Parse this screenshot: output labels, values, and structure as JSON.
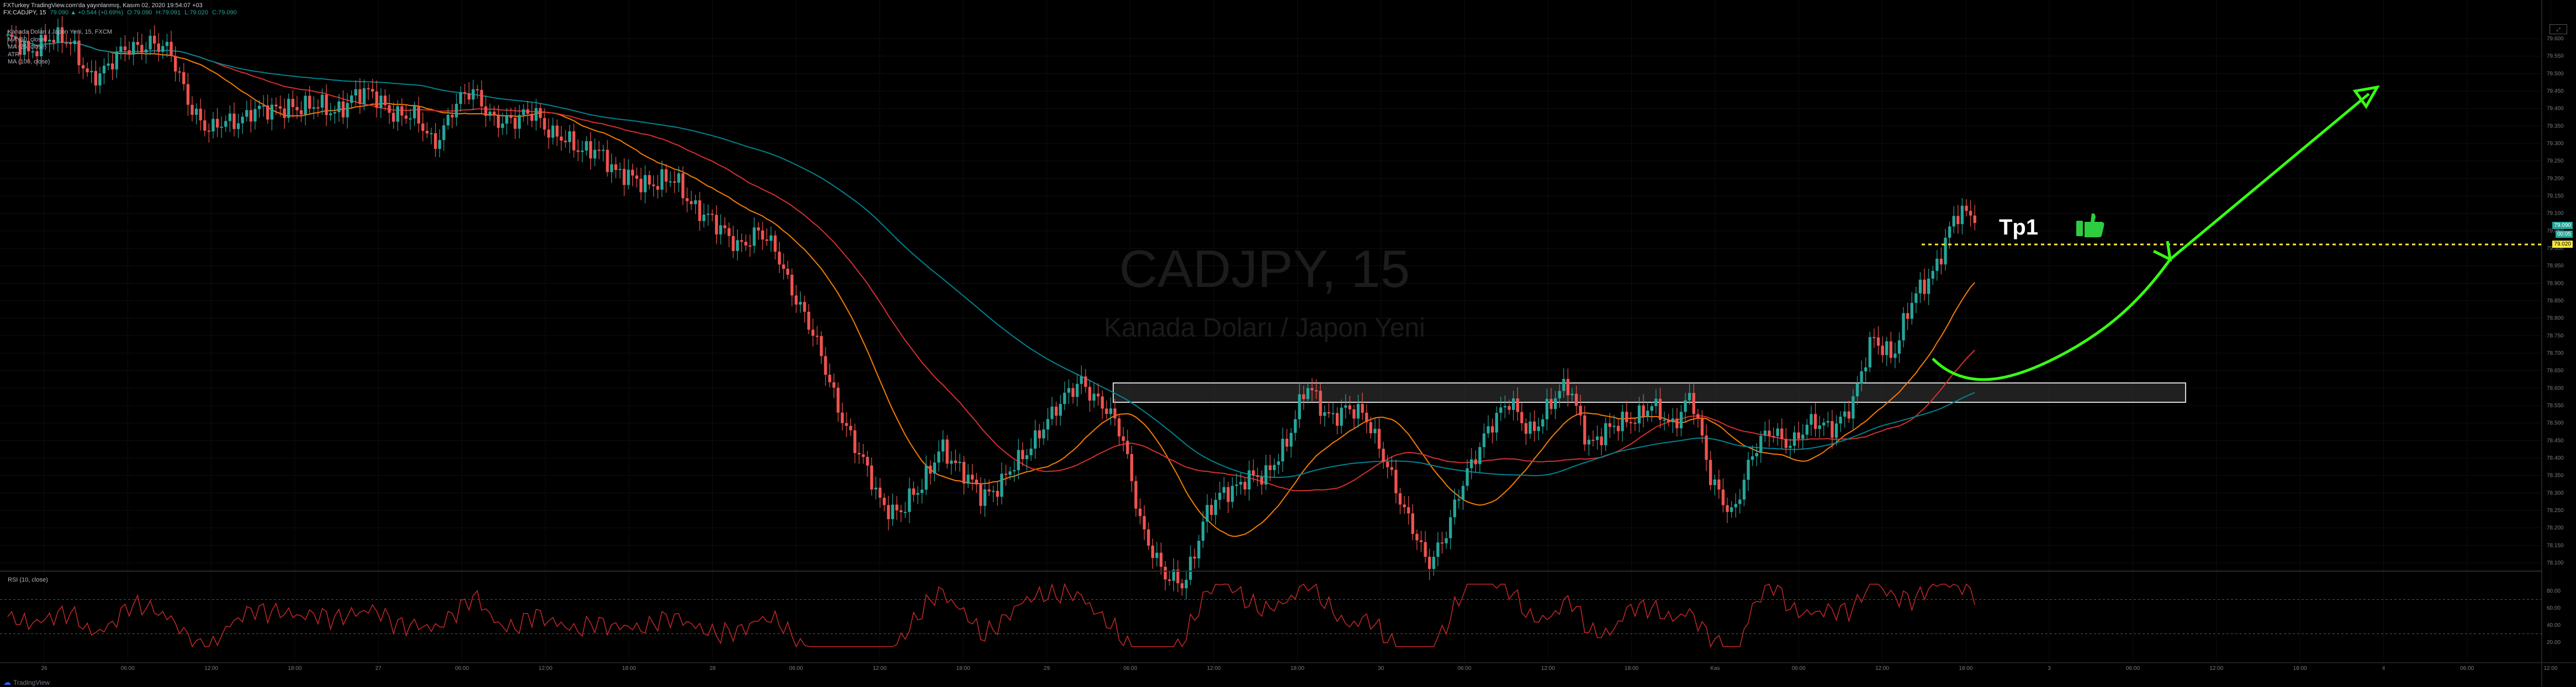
{
  "header": {
    "line1": "FXTurkey TradingView.com'da yayınlanmış, Kasım 02, 2020 19:54:07 +03",
    "symbol": "FX:CADJPY, 15",
    "ohlc": [
      "79.090 ▲ +0.544 (+0.69%)",
      "O:79.090",
      "H:79.091",
      "L:79.020",
      "C:79.090"
    ]
  },
  "legend": {
    "title": "Kanada Doları / Japon Yeni, 15, FXCM",
    "items": [
      "MA (50, close)",
      "MA (25, close)",
      "ATR",
      "MA (100, close)"
    ]
  },
  "watermark": {
    "symbol": "CADJPY, 15",
    "name": "Kanada Doları / Japon Yeni"
  },
  "annotation": {
    "tp_label": "Tp1"
  },
  "rsi_label": "RSI (10, close)",
  "footer": {
    "brand": "TradingView"
  },
  "colors": {
    "background": "#000000",
    "candle_up": "#26a69a",
    "candle_down": "#ef5350",
    "ma50": "#d32f2f",
    "ma25": "#f57c00",
    "ma100": "#00838f",
    "rsi": "#c62828",
    "target": "#ffeb3b",
    "arrow": "#39ff14"
  },
  "price_axis": {
    "ticks": [
      "79.600",
      "79.550",
      "79.500",
      "79.450",
      "79.400",
      "79.350",
      "79.300",
      "79.250",
      "79.200",
      "79.150",
      "79.100",
      "79.050",
      "79.000",
      "78.950",
      "78.900",
      "78.850",
      "78.800",
      "78.750",
      "78.700",
      "78.650",
      "78.600",
      "78.550",
      "78.500",
      "78.450",
      "78.400",
      "78.350",
      "78.300",
      "78.250",
      "78.200",
      "78.150",
      "78.100"
    ],
    "badges": [
      "79.090",
      "00:05",
      "79.020"
    ]
  },
  "rsi_axis": {
    "ticks": [
      "80.00",
      "60.00",
      "40.00",
      "20.00"
    ]
  },
  "time_axis": {
    "labels": [
      "26",
      "06:00",
      "12:00",
      "18:00",
      "27",
      "06:00",
      "12:00",
      "18:00",
      "28",
      "06:00",
      "12:00",
      "18:00",
      "29",
      "06:00",
      "12:00",
      "18:00",
      "30",
      "06:00",
      "12:00",
      "18:00",
      "Kas",
      "06:00",
      "12:00",
      "18:00",
      "3",
      "06:00",
      "12:00",
      "18:00",
      "4",
      "06:00",
      "12:00"
    ]
  },
  "chart_data": {
    "type": "candlestick",
    "title": "CADJPY, 15",
    "ylim": [
      78.1,
      79.6
    ],
    "series": [
      {
        "name": "CADJPY",
        "type": "close_path",
        "values": [
          79.6,
          79.55,
          79.62,
          79.58,
          79.5,
          79.52,
          79.57,
          79.6,
          79.55,
          79.42,
          79.33,
          79.36,
          79.4,
          79.38,
          79.42,
          79.4,
          79.39,
          79.44,
          79.43,
          79.4,
          79.37,
          79.3,
          79.41,
          79.44,
          79.38,
          79.35,
          79.4,
          79.32,
          79.28,
          79.3,
          79.2,
          79.21,
          79.18,
          79.19,
          79.12,
          79.05,
          79.02,
          79.04,
          78.98,
          78.85,
          78.7,
          78.55,
          78.4,
          78.28,
          78.25,
          78.3,
          78.45,
          78.35,
          78.3,
          78.33,
          78.39,
          78.5,
          78.55,
          78.63,
          78.55,
          78.45,
          78.2,
          78.05,
          78.05,
          78.22,
          78.3,
          78.35,
          78.33,
          78.45,
          78.6,
          78.52,
          78.55,
          78.5,
          78.4,
          78.22,
          78.1,
          78.2,
          78.35,
          78.5,
          78.55,
          78.48,
          78.55,
          78.6,
          78.45,
          78.47,
          78.52,
          78.55,
          78.48,
          78.6,
          78.32,
          78.25,
          78.4,
          78.48,
          78.45,
          78.49,
          78.5,
          78.55,
          78.75,
          78.7,
          78.85,
          78.95,
          79.08,
          79.1
        ]
      }
    ],
    "levels": [
      {
        "label": "Tp1",
        "value": 79.02
      }
    ],
    "zones": [
      {
        "from": 78.59,
        "to": 78.67
      }
    ]
  }
}
